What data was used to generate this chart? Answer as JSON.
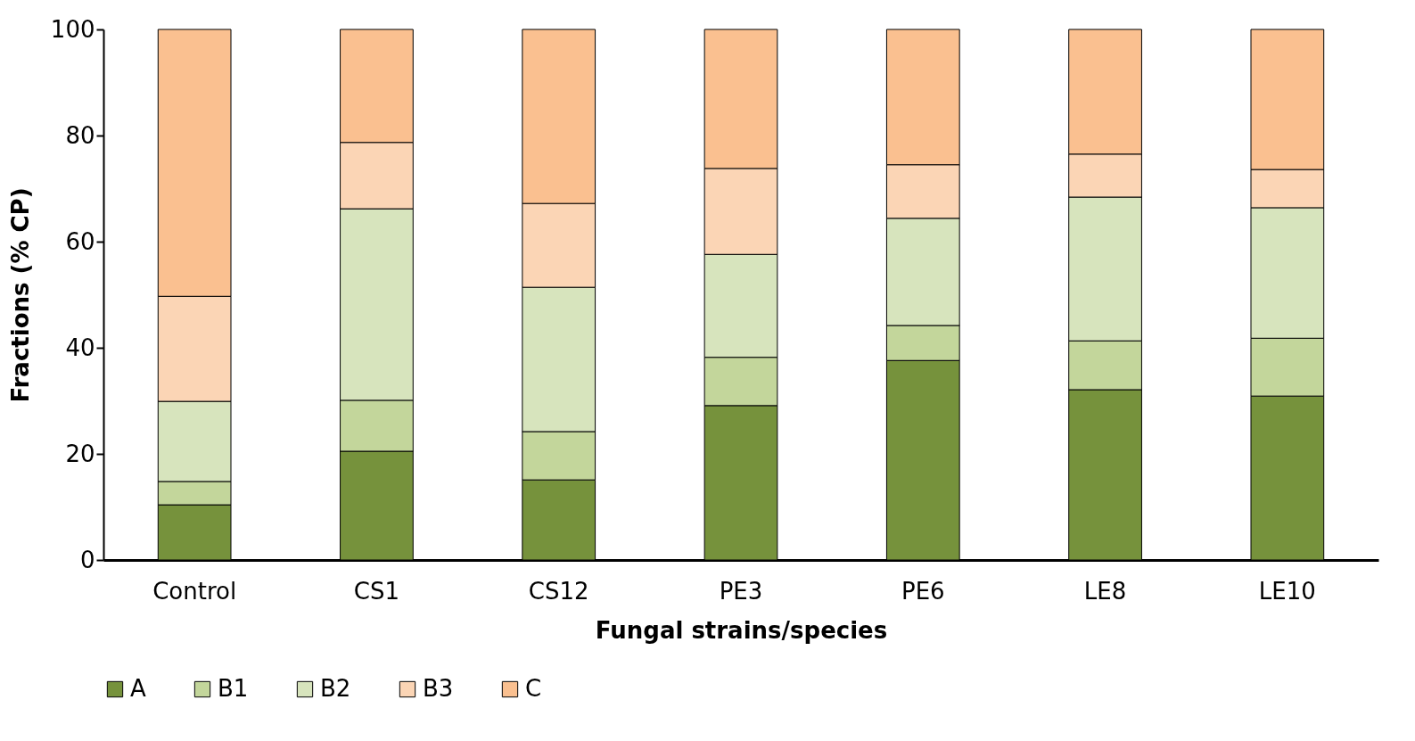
{
  "chart_data": {
    "type": "bar",
    "stacked": true,
    "xlabel": "Fungal strains/species",
    "ylabel": "Fractions (% CP)",
    "categories": [
      "Control",
      "CS1",
      "CS12",
      "PE3",
      "PE6",
      "LE8",
      "LE10"
    ],
    "series": [
      {
        "name": "A",
        "color": "#76923c",
        "values": [
          10.4,
          20.5,
          15.1,
          29.1,
          37.6,
          32.1,
          30.9
        ]
      },
      {
        "name": "B1",
        "color": "#c3d69b",
        "values": [
          4.4,
          9.6,
          9.1,
          9.1,
          6.6,
          9.2,
          10.9
        ]
      },
      {
        "name": "B2",
        "color": "#d7e4bd",
        "values": [
          15.1,
          36.1,
          27.2,
          19.4,
          20.2,
          27.1,
          24.6
        ]
      },
      {
        "name": "B3",
        "color": "#fbd5b5",
        "values": [
          19.8,
          12.5,
          15.8,
          16.2,
          10.1,
          8.1,
          7.2
        ]
      },
      {
        "name": "C",
        "color": "#fac090",
        "values": [
          50.3,
          21.3,
          32.8,
          26.2,
          25.5,
          23.5,
          26.4
        ]
      }
    ],
    "ylim": [
      0,
      100
    ],
    "yticks": [
      0,
      20,
      40,
      60,
      80,
      100
    ],
    "grid": false,
    "legend": "bottom"
  }
}
